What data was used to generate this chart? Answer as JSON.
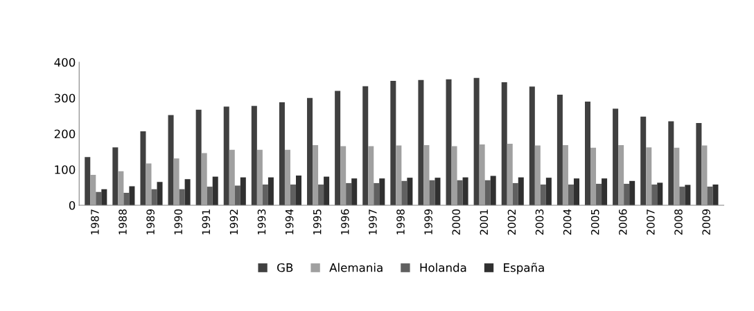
{
  "chart_data": {
    "type": "bar",
    "categories": [
      "1987",
      "1988",
      "1989",
      "1990",
      "1991",
      "1992",
      "1993",
      "1994",
      "1995",
      "1996",
      "1997",
      "1998",
      "1999",
      "2000",
      "2001",
      "2002",
      "2003",
      "2004",
      "2005",
      "2006",
      "2007",
      "2008",
      "2009"
    ],
    "series": [
      {
        "name": "GB",
        "color": "#404040",
        "values": [
          135,
          162,
          207,
          252,
          267,
          276,
          278,
          288,
          300,
          320,
          333,
          348,
          350,
          352,
          356,
          344,
          332,
          309,
          290,
          270,
          248,
          235,
          230
        ]
      },
      {
        "name": "Alemania",
        "color": "#a0a0a0",
        "values": [
          85,
          95,
          117,
          131,
          146,
          155,
          155,
          155,
          168,
          165,
          165,
          167,
          168,
          165,
          170,
          172,
          167,
          168,
          161,
          168,
          162,
          161,
          167
        ]
      },
      {
        "name": "Holanda",
        "color": "#606060",
        "values": [
          37,
          35,
          45,
          45,
          52,
          55,
          58,
          58,
          58,
          62,
          62,
          68,
          70,
          70,
          70,
          62,
          58,
          58,
          60,
          60,
          58,
          52,
          52
        ]
      },
      {
        "name": "España",
        "color": "#303030",
        "values": [
          45,
          53,
          65,
          73,
          80,
          78,
          78,
          83,
          80,
          75,
          75,
          77,
          77,
          78,
          82,
          78,
          77,
          75,
          75,
          68,
          63,
          57,
          58
        ]
      }
    ],
    "ylim": [
      0,
      400
    ],
    "yticks": [
      0,
      100,
      200,
      300,
      400
    ],
    "grid": false,
    "legend": "bottom"
  }
}
